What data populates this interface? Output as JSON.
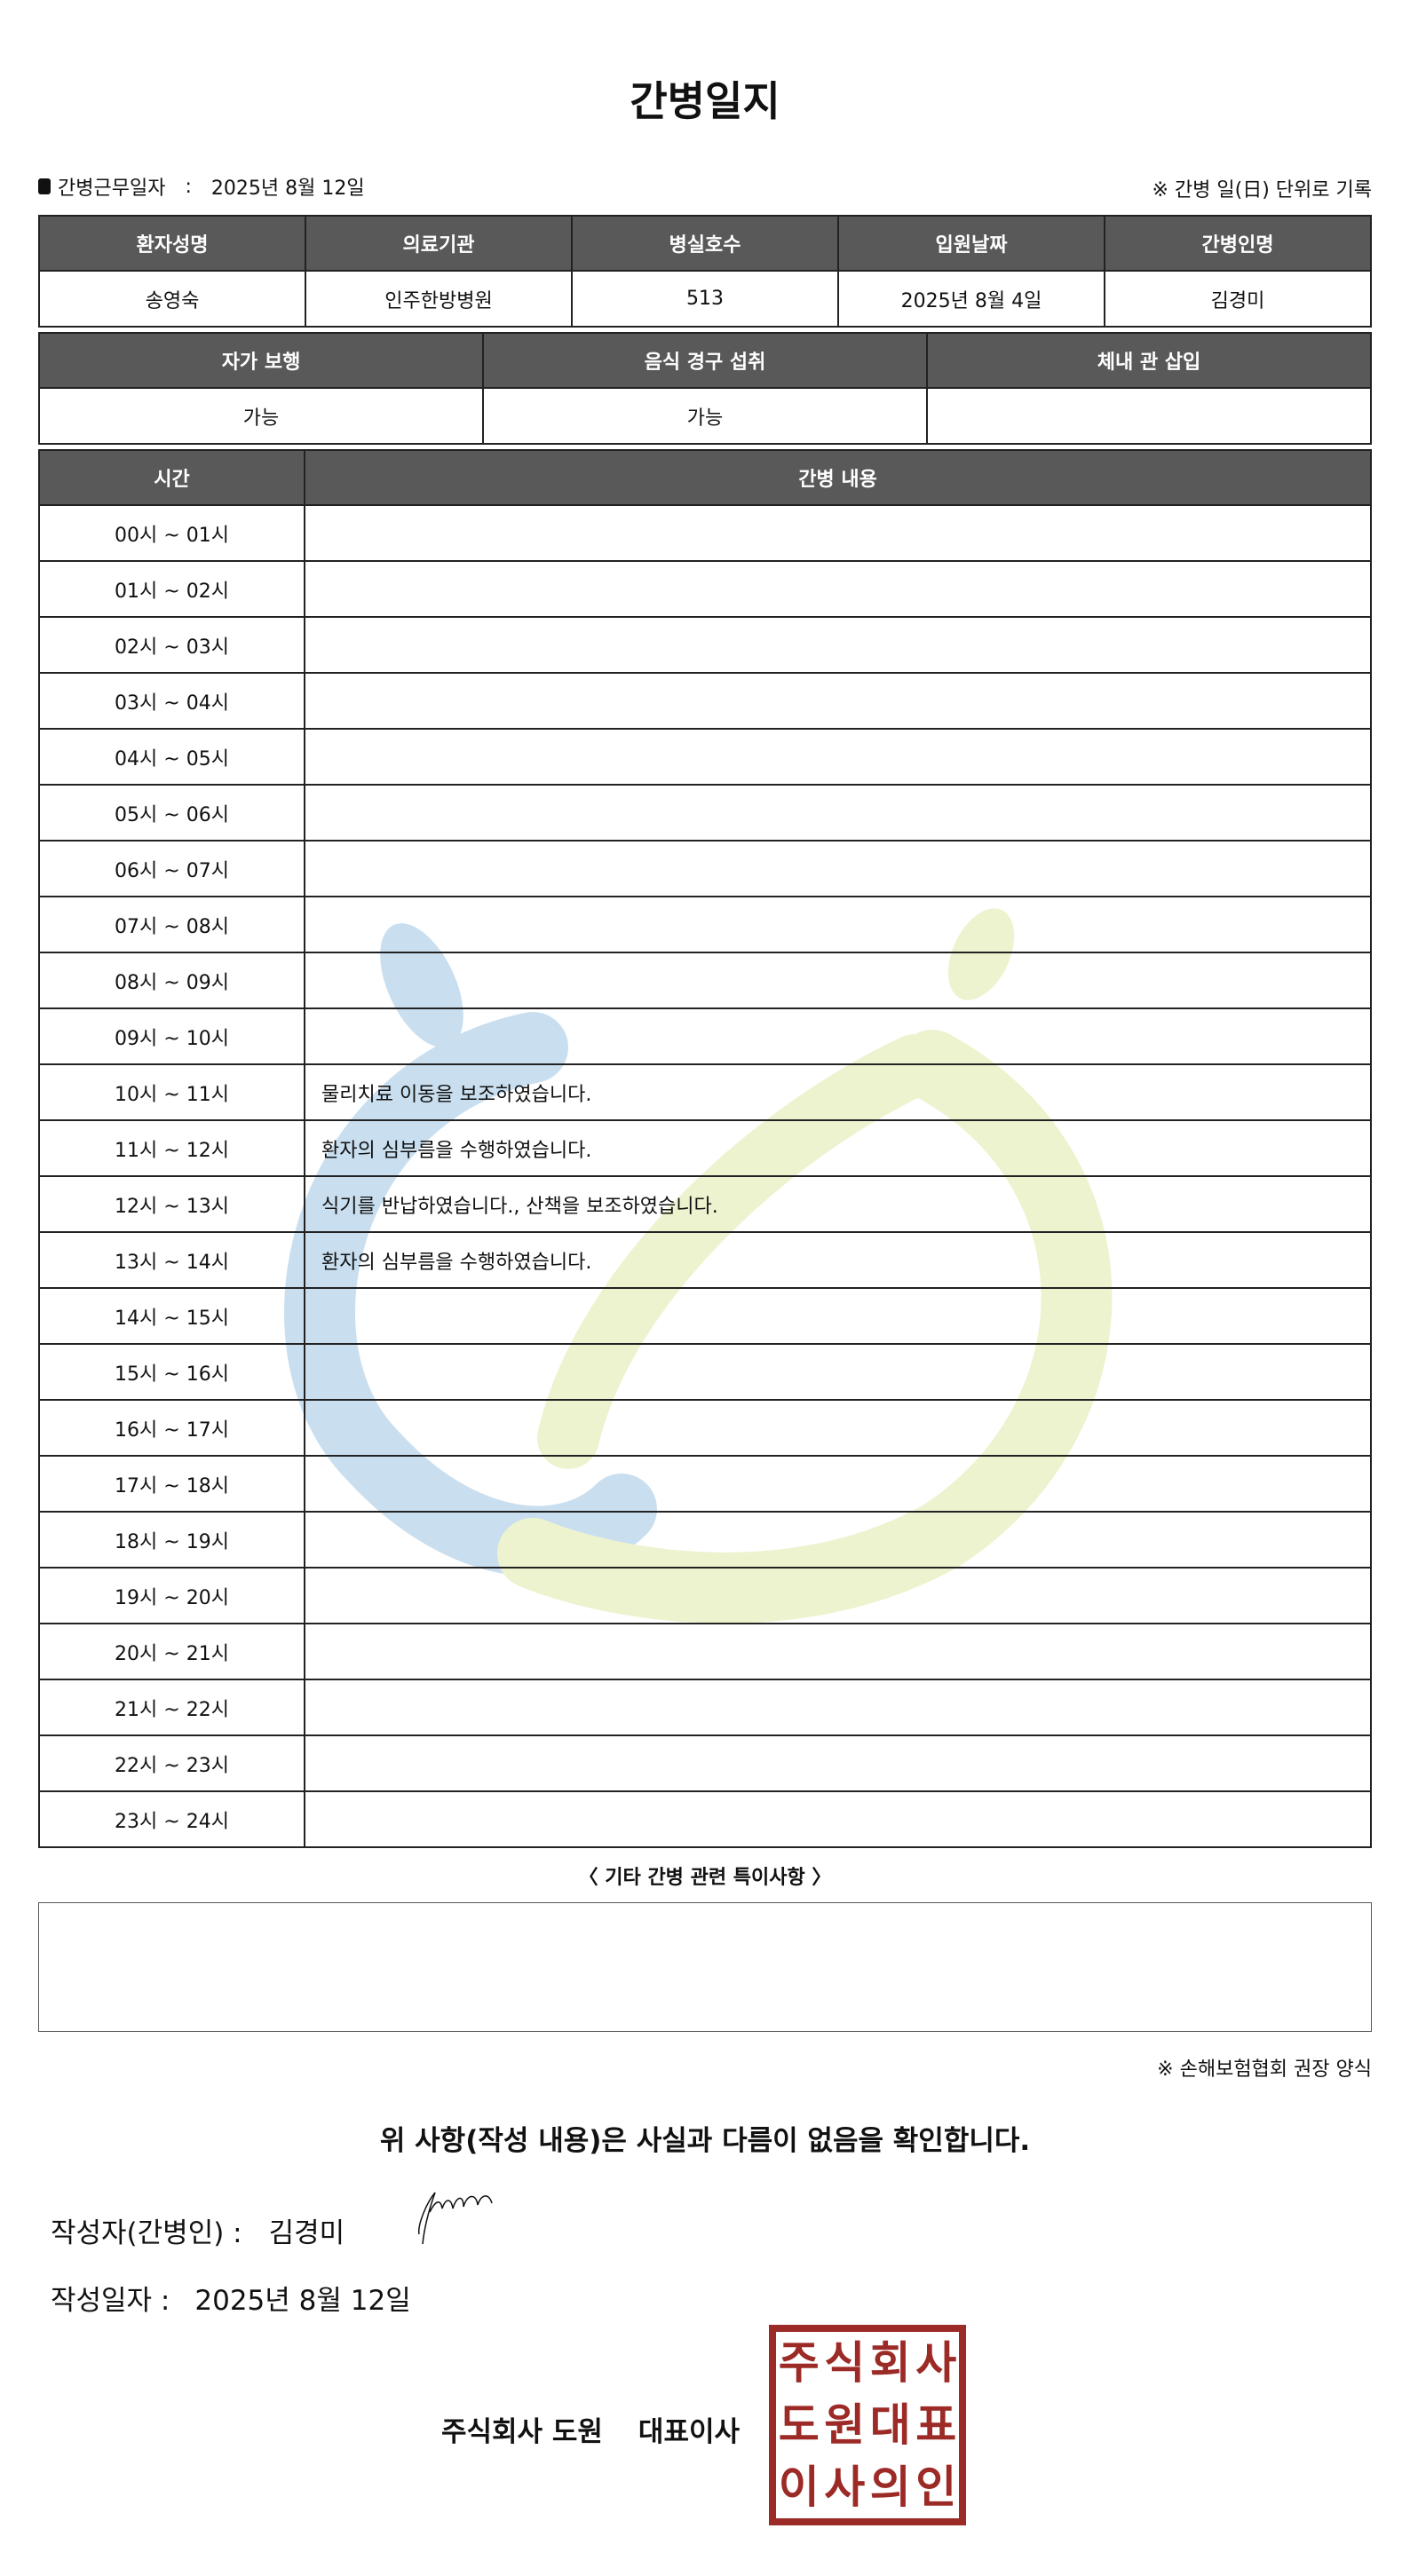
{
  "title": "간병일지",
  "work_date_label": "간병근무일자",
  "work_date_sep": ":",
  "work_date": "2025년 8월 12일",
  "unit_note": "※ 간병 일(日) 단위로 기록",
  "patient_table": {
    "headers": [
      "환자성명",
      "의료기관",
      "병실호수",
      "입원날짜",
      "간병인명"
    ],
    "values": [
      "송영숙",
      "인주한방병원",
      "513",
      "2025년 8월 4일",
      "김경미"
    ]
  },
  "status_table": {
    "headers": [
      "자가 보행",
      "음식 경구 섭취",
      "체내 관 삽입"
    ],
    "values": [
      "가능",
      "가능",
      ""
    ]
  },
  "log_table": {
    "headers": [
      "시간",
      "간병 내용"
    ],
    "rows": [
      {
        "time": "00시 ~ 01시",
        "content": ""
      },
      {
        "time": "01시 ~ 02시",
        "content": ""
      },
      {
        "time": "02시 ~ 03시",
        "content": ""
      },
      {
        "time": "03시 ~ 04시",
        "content": ""
      },
      {
        "time": "04시 ~ 05시",
        "content": ""
      },
      {
        "time": "05시 ~ 06시",
        "content": ""
      },
      {
        "time": "06시 ~ 07시",
        "content": ""
      },
      {
        "time": "07시 ~ 08시",
        "content": ""
      },
      {
        "time": "08시 ~ 09시",
        "content": ""
      },
      {
        "time": "09시 ~ 10시",
        "content": ""
      },
      {
        "time": "10시 ~ 11시",
        "content": "물리치료 이동을 보조하였습니다."
      },
      {
        "time": "11시 ~ 12시",
        "content": "환자의 심부름을 수행하였습니다."
      },
      {
        "time": "12시 ~ 13시",
        "content": "식기를 반납하였습니다., 산책을 보조하였습니다."
      },
      {
        "time": "13시 ~ 14시",
        "content": "환자의 심부름을 수행하였습니다."
      },
      {
        "time": "14시 ~ 15시",
        "content": ""
      },
      {
        "time": "15시 ~ 16시",
        "content": ""
      },
      {
        "time": "16시 ~ 17시",
        "content": ""
      },
      {
        "time": "17시 ~ 18시",
        "content": ""
      },
      {
        "time": "18시 ~ 19시",
        "content": ""
      },
      {
        "time": "19시 ~ 20시",
        "content": ""
      },
      {
        "time": "20시 ~ 21시",
        "content": ""
      },
      {
        "time": "21시 ~ 22시",
        "content": ""
      },
      {
        "time": "22시 ~ 23시",
        "content": ""
      },
      {
        "time": "23시 ~ 24시",
        "content": ""
      }
    ]
  },
  "other_notes_title": "〈 기타 간병 관련 특이사항 〉",
  "other_notes": "",
  "form_note": "※ 손해보험협회 권장 양식",
  "confirm_text": "위 사항(작성 내용)은 사실과 다름이 없음을 확인합니다.",
  "writer_label": "작성자(간병인) :",
  "writer_name": "김경미",
  "write_date_label": "작성일자 :",
  "write_date": "2025년 8월 12일",
  "company_name": "주식회사 도원",
  "company_title": "대표이사",
  "stamp_text": "주식회사도원대표이사의인",
  "colors": {
    "header_bg": "#595959",
    "stamp": "#9c2a26",
    "watermark_blue": "#c9dff0",
    "watermark_green": "#eef3cf"
  }
}
